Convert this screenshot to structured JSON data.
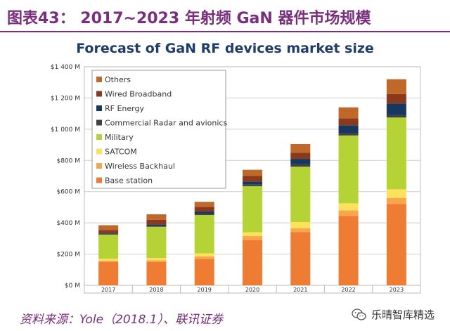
{
  "header": {
    "title": "图表43：  2017~2023 年射频 GaN 器件市场规模"
  },
  "footer": {
    "source": "资料来源：Yole（2018.1）、联讯证券",
    "watermark": "乐晴智库精选"
  },
  "colors": {
    "Others": "#c0682a",
    "Wired Broadband": "#8a3a1a",
    "RF Energy": "#17375e",
    "Commercial Radar and avionics": "#404040",
    "Military": "#b5d334",
    "SATCOM": "#fde15c",
    "Wireless Backhaul": "#f7a64a",
    "Base station": "#ee7d33"
  },
  "chart_data": {
    "type": "bar",
    "stacked": true,
    "title": "Forecast of GaN RF devices market size",
    "xlabel": "",
    "ylabel": "",
    "ylim": [
      0,
      1400
    ],
    "yticks": [
      0,
      200,
      400,
      600,
      800,
      1000,
      1200,
      1400
    ],
    "ytick_labels": [
      "$0 M",
      "$200 M",
      "$400 M",
      "$600 M",
      "$800 M",
      "$1 000 M",
      "$1 200 M",
      "$1 400 M"
    ],
    "categories": [
      "2017",
      "2018",
      "2019",
      "2020",
      "2021",
      "2022",
      "2023"
    ],
    "legend_position": "top-left",
    "legend_order": [
      "Others",
      "Wired Broadband",
      "RF Energy",
      "Commercial Radar and avionics",
      "Military",
      "SATCOM",
      "Wireless Backhaul",
      "Base station"
    ],
    "series": [
      {
        "name": "Base station",
        "values": [
          150,
          150,
          170,
          290,
          340,
          445,
          520
        ]
      },
      {
        "name": "Wireless Backhaul",
        "values": [
          8,
          10,
          15,
          25,
          25,
          35,
          40
        ]
      },
      {
        "name": "SATCOM",
        "values": [
          12,
          15,
          20,
          25,
          40,
          45,
          55
        ]
      },
      {
        "name": "Military",
        "values": [
          155,
          200,
          245,
          295,
          355,
          435,
          460
        ]
      },
      {
        "name": "Commercial Radar and avionics",
        "values": [
          5,
          5,
          8,
          10,
          15,
          15,
          15
        ]
      },
      {
        "name": "RF Energy",
        "values": [
          5,
          10,
          15,
          20,
          35,
          50,
          75
        ]
      },
      {
        "name": "Wired Broadband",
        "values": [
          20,
          30,
          30,
          35,
          40,
          45,
          60
        ]
      },
      {
        "name": "Others",
        "values": [
          30,
          35,
          32,
          40,
          55,
          70,
          95
        ]
      }
    ]
  }
}
